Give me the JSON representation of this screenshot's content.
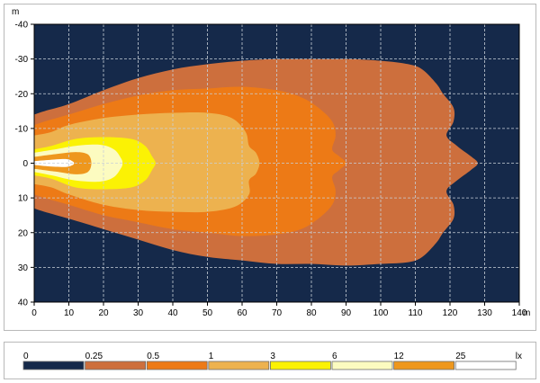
{
  "chart_data": {
    "type": "heatmap",
    "title": "",
    "x_unit": "m",
    "y_unit": "m",
    "xlim": [
      0,
      140
    ],
    "ylim": [
      -40,
      40
    ],
    "x_ticks": [
      "0",
      "10",
      "20",
      "30",
      "40",
      "50",
      "60",
      "70",
      "80",
      "90",
      "100",
      "110",
      "120",
      "130",
      "140"
    ],
    "y_ticks": [
      "-40",
      "-30",
      "-20",
      "-10",
      "0",
      "10",
      "20",
      "30",
      "40"
    ],
    "grid": true,
    "background_color": "#15294a",
    "legend": {
      "unit": "lx",
      "items": [
        {
          "label": "0",
          "color": "#15294a"
        },
        {
          "label": "0.25",
          "color": "#cd6f3d"
        },
        {
          "label": "0.5",
          "color": "#ed7a16"
        },
        {
          "label": "1",
          "color": "#edb24f"
        },
        {
          "label": "3",
          "color": "#fbf204"
        },
        {
          "label": "6",
          "color": "#fcfbc0"
        },
        {
          "label": "12",
          "color": "#ee971d"
        },
        {
          "label": "25",
          "color": "#ffffff"
        }
      ]
    },
    "isolux_contours": [
      {
        "threshold": "0.25",
        "color": "#cd6f3d",
        "points": [
          [
            0,
            -14
          ],
          [
            3,
            -15
          ],
          [
            10,
            -17
          ],
          [
            20,
            -21
          ],
          [
            30,
            -24.5
          ],
          [
            40,
            -27
          ],
          [
            50,
            -28.5
          ],
          [
            60,
            -29.5
          ],
          [
            70,
            -30
          ],
          [
            80,
            -30
          ],
          [
            90,
            -30
          ],
          [
            100,
            -29.5
          ],
          [
            108,
            -28.5
          ],
          [
            112,
            -27
          ],
          [
            116,
            -23
          ],
          [
            118,
            -20
          ],
          [
            121,
            -16
          ],
          [
            121,
            -12
          ],
          [
            119,
            -8
          ],
          [
            122,
            -5
          ],
          [
            126,
            -2
          ],
          [
            128,
            0
          ],
          [
            126,
            2
          ],
          [
            122,
            5
          ],
          [
            119,
            8
          ],
          [
            121,
            12
          ],
          [
            121,
            16
          ],
          [
            118,
            20
          ],
          [
            116,
            23
          ],
          [
            112,
            27
          ],
          [
            108,
            28.5
          ],
          [
            100,
            29
          ],
          [
            90,
            29.5
          ],
          [
            80,
            29
          ],
          [
            70,
            29
          ],
          [
            60,
            28
          ],
          [
            50,
            27
          ],
          [
            40,
            25
          ],
          [
            30,
            22
          ],
          [
            20,
            19
          ],
          [
            10,
            16
          ],
          [
            3,
            14
          ],
          [
            0,
            13
          ]
        ]
      },
      {
        "threshold": "0.5",
        "color": "#ed7a16",
        "points": [
          [
            0,
            -11
          ],
          [
            3,
            -12
          ],
          [
            10,
            -14
          ],
          [
            20,
            -17
          ],
          [
            30,
            -19.5
          ],
          [
            40,
            -21
          ],
          [
            50,
            -21.5
          ],
          [
            60,
            -22
          ],
          [
            70,
            -21
          ],
          [
            77,
            -19
          ],
          [
            82,
            -16
          ],
          [
            86,
            -12
          ],
          [
            87,
            -8
          ],
          [
            86,
            -4
          ],
          [
            88,
            -2
          ],
          [
            90,
            0
          ],
          [
            88,
            2
          ],
          [
            86,
            4
          ],
          [
            87,
            8
          ],
          [
            86,
            12
          ],
          [
            82,
            16
          ],
          [
            77,
            19
          ],
          [
            70,
            20.5
          ],
          [
            60,
            21
          ],
          [
            50,
            20
          ],
          [
            40,
            19
          ],
          [
            30,
            17
          ],
          [
            20,
            15
          ],
          [
            10,
            12
          ],
          [
            3,
            10
          ],
          [
            0,
            9
          ]
        ]
      },
      {
        "threshold": "1",
        "color": "#edb24f",
        "points": [
          [
            0,
            -8
          ],
          [
            5,
            -9
          ],
          [
            10,
            -11
          ],
          [
            20,
            -13
          ],
          [
            30,
            -14
          ],
          [
            40,
            -14.5
          ],
          [
            50,
            -14.5
          ],
          [
            57,
            -13
          ],
          [
            61,
            -9
          ],
          [
            62,
            -5
          ],
          [
            64,
            -3
          ],
          [
            65,
            0
          ],
          [
            64,
            3
          ],
          [
            62,
            5
          ],
          [
            62,
            9
          ],
          [
            58,
            12.5
          ],
          [
            50,
            14
          ],
          [
            40,
            14
          ],
          [
            30,
            13.5
          ],
          [
            20,
            12
          ],
          [
            10,
            9
          ],
          [
            5,
            7
          ],
          [
            0,
            6
          ]
        ]
      },
      {
        "threshold": "3",
        "color": "#fbf204",
        "points": [
          [
            0,
            -4
          ],
          [
            5,
            -5
          ],
          [
            12,
            -7
          ],
          [
            20,
            -7.5
          ],
          [
            28,
            -7
          ],
          [
            32,
            -5
          ],
          [
            34,
            -2
          ],
          [
            35,
            0
          ],
          [
            34,
            2
          ],
          [
            32,
            5
          ],
          [
            28,
            7
          ],
          [
            20,
            7.5
          ],
          [
            12,
            7
          ],
          [
            5,
            4.5
          ],
          [
            0,
            3.5
          ]
        ]
      },
      {
        "threshold": "6",
        "color": "#fcfbc0",
        "points": [
          [
            0,
            -3
          ],
          [
            5,
            -3.8
          ],
          [
            12,
            -5
          ],
          [
            19,
            -5.3
          ],
          [
            23,
            -4
          ],
          [
            25,
            -1.5
          ],
          [
            25.5,
            0
          ],
          [
            25,
            1.5
          ],
          [
            23,
            4
          ],
          [
            19,
            5.3
          ],
          [
            12,
            5
          ],
          [
            5,
            3.5
          ],
          [
            0,
            2.5
          ]
        ]
      },
      {
        "threshold": "12",
        "color": "#ee971d",
        "points": [
          [
            0,
            -1.8
          ],
          [
            6,
            -2.6
          ],
          [
            12,
            -3.2
          ],
          [
            15.5,
            -2.5
          ],
          [
            16.5,
            0
          ],
          [
            15.5,
            2.5
          ],
          [
            12,
            3.2
          ],
          [
            6,
            2.4
          ],
          [
            0,
            1.6
          ]
        ]
      },
      {
        "threshold": "25",
        "color": "#ffffff",
        "points": [
          [
            0,
            -0.6
          ],
          [
            4,
            -0.9
          ],
          [
            9,
            -1.2
          ],
          [
            11,
            -0.6
          ],
          [
            11.5,
            0
          ],
          [
            11,
            0.6
          ],
          [
            9,
            1.1
          ],
          [
            4,
            0.9
          ],
          [
            0,
            0.5
          ]
        ]
      }
    ]
  }
}
